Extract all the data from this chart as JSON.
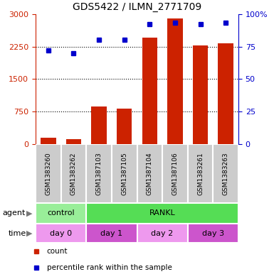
{
  "title": "GDS5422 / ILMN_2771709",
  "samples": [
    "GSM1383260",
    "GSM1383262",
    "GSM1387103",
    "GSM1387105",
    "GSM1387104",
    "GSM1387106",
    "GSM1383261",
    "GSM1383263"
  ],
  "counts": [
    150,
    120,
    870,
    820,
    2450,
    2900,
    2280,
    2320
  ],
  "percentile_ranks": [
    72,
    70,
    80,
    80,
    92,
    93,
    92,
    93
  ],
  "ylim_left": [
    0,
    3000
  ],
  "ylim_right": [
    0,
    100
  ],
  "yticks_left": [
    0,
    750,
    1500,
    2250,
    3000
  ],
  "ytick_labels_left": [
    "0",
    "750",
    "1500",
    "2250",
    "3000"
  ],
  "yticks_right": [
    0,
    25,
    50,
    75,
    100
  ],
  "ytick_labels_right": [
    "0",
    "25",
    "50",
    "75",
    "100%"
  ],
  "bar_color": "#cc2200",
  "dot_color": "#0000cc",
  "agent_labels": [
    {
      "label": "control",
      "start": 0,
      "end": 2,
      "color": "#99ee99"
    },
    {
      "label": "RANKL",
      "start": 2,
      "end": 8,
      "color": "#55dd55"
    }
  ],
  "time_labels": [
    {
      "label": "day 0",
      "start": 0,
      "end": 2,
      "color": "#ee99ee"
    },
    {
      "label": "day 1",
      "start": 2,
      "end": 4,
      "color": "#cc55cc"
    },
    {
      "label": "day 2",
      "start": 4,
      "end": 6,
      "color": "#ee99ee"
    },
    {
      "label": "day 3",
      "start": 6,
      "end": 8,
      "color": "#cc55cc"
    }
  ],
  "legend_items": [
    {
      "label": "count",
      "color": "#cc2200"
    },
    {
      "label": "percentile rank within the sample",
      "color": "#0000cc"
    }
  ],
  "grid_color": "black",
  "left_axis_color": "#cc2200",
  "right_axis_color": "#0000cc",
  "sample_box_color": "#cccccc",
  "gridline_yticks": [
    750,
    1500,
    2250
  ]
}
